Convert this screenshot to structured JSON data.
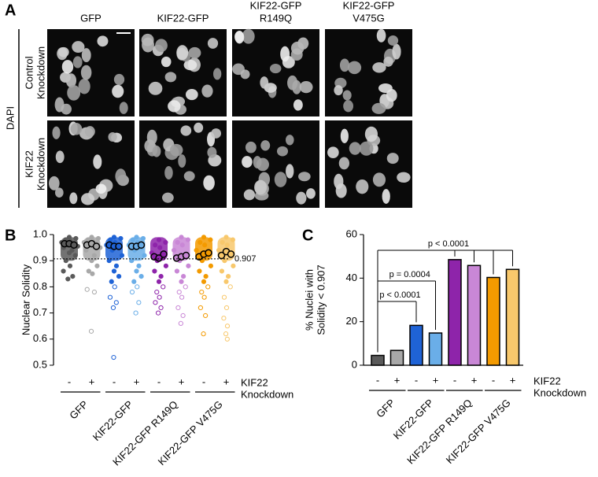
{
  "panel_a": {
    "label": "A",
    "columns": [
      "GFP",
      "KIF22-GFP",
      [
        "KIF22-GFP",
        "R149Q"
      ],
      [
        "KIF22-GFP",
        "V475G"
      ]
    ],
    "stain": "DAPI",
    "rows": [
      [
        "Control",
        "Knockdown"
      ],
      [
        "KIF22",
        "Knockdown"
      ]
    ]
  },
  "chart_data": [
    {
      "type": "strip",
      "label": "B",
      "ylabel": "Nuclear Solidity",
      "categories": [
        "-",
        "+",
        "-",
        "+",
        "-",
        "+",
        "-",
        "+"
      ],
      "category_title": [
        "KIF22",
        "Knockdown"
      ],
      "groups": [
        "GFP",
        "KIF22-GFP",
        "KIF22-GFP R149Q",
        "KIF22-GFP V475G"
      ],
      "colors": [
        "#5a5a5a",
        "#a8a8a8",
        "#1f63d6",
        "#6aaee8",
        "#8e24aa",
        "#c987d6",
        "#f39a00",
        "#f8c86c"
      ],
      "ylim": [
        0.5,
        1.0
      ],
      "yticks": [
        0.5,
        0.6,
        0.7,
        0.8,
        0.9,
        {
          "value": 1.0,
          "label": "1.0"
        }
      ],
      "threshold": {
        "value": 0.907,
        "label": "0.907"
      },
      "cells": [
        [
          0.99,
          0.985,
          0.98,
          0.975,
          0.97,
          0.965,
          0.96,
          0.955,
          0.95,
          0.94,
          0.93,
          0.92,
          0.9,
          0.88,
          0.86,
          0.84,
          0.83
        ],
        [
          0.99,
          0.985,
          0.98,
          0.975,
          0.97,
          0.965,
          0.96,
          0.95,
          0.94,
          0.92,
          0.9,
          0.88,
          0.86,
          0.85,
          0.79,
          0.78,
          0.63
        ],
        [
          0.99,
          0.985,
          0.98,
          0.97,
          0.96,
          0.95,
          0.94,
          0.92,
          0.9,
          0.88,
          0.86,
          0.84,
          0.82,
          0.8,
          0.76,
          0.74,
          0.72,
          0.53
        ],
        [
          0.99,
          0.985,
          0.98,
          0.97,
          0.96,
          0.95,
          0.94,
          0.92,
          0.9,
          0.88,
          0.86,
          0.84,
          0.82,
          0.8,
          0.78,
          0.74,
          0.7
        ],
        [
          0.98,
          0.97,
          0.96,
          0.95,
          0.93,
          0.91,
          0.9,
          0.88,
          0.86,
          0.84,
          0.82,
          0.8,
          0.78,
          0.76,
          0.74,
          0.72,
          0.7
        ],
        [
          0.99,
          0.98,
          0.97,
          0.96,
          0.94,
          0.92,
          0.9,
          0.88,
          0.86,
          0.84,
          0.82,
          0.8,
          0.78,
          0.76,
          0.72,
          0.69,
          0.66
        ],
        [
          0.99,
          0.98,
          0.97,
          0.96,
          0.94,
          0.92,
          0.9,
          0.88,
          0.86,
          0.84,
          0.82,
          0.8,
          0.78,
          0.76,
          0.72,
          0.69,
          0.62
        ],
        [
          0.99,
          0.98,
          0.97,
          0.96,
          0.94,
          0.92,
          0.9,
          0.88,
          0.86,
          0.84,
          0.82,
          0.8,
          0.76,
          0.72,
          0.68,
          0.65,
          0.62,
          0.6
        ]
      ],
      "replicates": [
        [
          0.965,
          0.965,
          0.96
        ],
        [
          0.96,
          0.965,
          0.955
        ],
        [
          0.96,
          0.955,
          0.955
        ],
        [
          0.955,
          0.955,
          0.96
        ],
        [
          0.915,
          0.91,
          0.925
        ],
        [
          0.91,
          0.915,
          0.92
        ],
        [
          0.915,
          0.925,
          0.93
        ],
        [
          0.92,
          0.935,
          0.925
        ]
      ]
    },
    {
      "type": "bar",
      "label": "C",
      "ylabel": [
        "% Nuclei with",
        "Solidity < 0.907"
      ],
      "categories": [
        "-",
        "+",
        "-",
        "+",
        "-",
        "+",
        "-",
        "+"
      ],
      "category_title": [
        "KIF22",
        "Knockdown"
      ],
      "groups": [
        "GFP",
        "KIF22-GFP",
        "KIF22-GFP R149Q",
        "KIF22-GFP V475G"
      ],
      "values": [
        4.5,
        6.8,
        18.3,
        14.8,
        48.5,
        45.8,
        40.3,
        44.0
      ],
      "colors": [
        "#5a5a5a",
        "#a8a8a8",
        "#1f63d6",
        "#6aaee8",
        "#8e24aa",
        "#c987d6",
        "#f39a00",
        "#f8c86c"
      ],
      "ylim": [
        0,
        60
      ],
      "yticks": [
        0,
        20,
        40,
        60
      ],
      "annotations": [
        "p < 0.0001",
        "p = 0.0004",
        "p < 0.0001"
      ]
    }
  ]
}
